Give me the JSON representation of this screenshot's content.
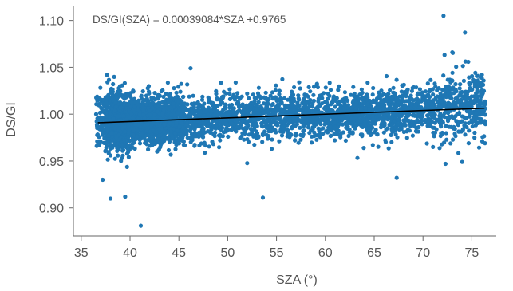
{
  "chart_data": {
    "type": "scatter",
    "title": "",
    "xlabel": "SZA (°)",
    "ylabel": "DS/GI",
    "xlim": [
      34.2,
      77.5
    ],
    "ylim": [
      0.87,
      1.115
    ],
    "x_ticks": [
      35,
      40,
      45,
      50,
      55,
      60,
      65,
      70,
      75
    ],
    "y_ticks": [
      0.9,
      0.95,
      1.0,
      1.05,
      1.1
    ],
    "x_tick_labels": [
      "35",
      "40",
      "45",
      "50",
      "55",
      "60",
      "65",
      "70",
      "75"
    ],
    "y_tick_labels": [
      "0.90",
      "0.95",
      "1.00",
      "1.05",
      "1.10"
    ],
    "grid": false,
    "legend": "none",
    "annotation": "DS/GI(SZA) = 0.00039084*SZA +0.9765",
    "fit": {
      "slope": 0.00039084,
      "intercept": 0.9765,
      "x_range": [
        36.7,
        76.3
      ]
    },
    "colors": {
      "points": "#1f77b4",
      "fit": "#000000"
    },
    "series": [
      {
        "x_range": [
          36.5,
          76.4
        ],
        "density_note": "dense cloud around fit line",
        "points": [
          [
            41.1,
            0.881
          ],
          [
            38.0,
            0.91
          ],
          [
            39.5,
            0.912
          ],
          [
            53.6,
            0.911
          ],
          [
            37.2,
            0.93
          ],
          [
            67.3,
            0.932
          ],
          [
            72.1,
            1.105
          ],
          [
            74.3,
            1.087
          ],
          [
            73.0,
            1.066
          ],
          [
            46.2,
            1.049
          ],
          [
            74.0,
            0.949
          ],
          [
            72.3,
            0.947
          ]
        ]
      }
    ]
  }
}
